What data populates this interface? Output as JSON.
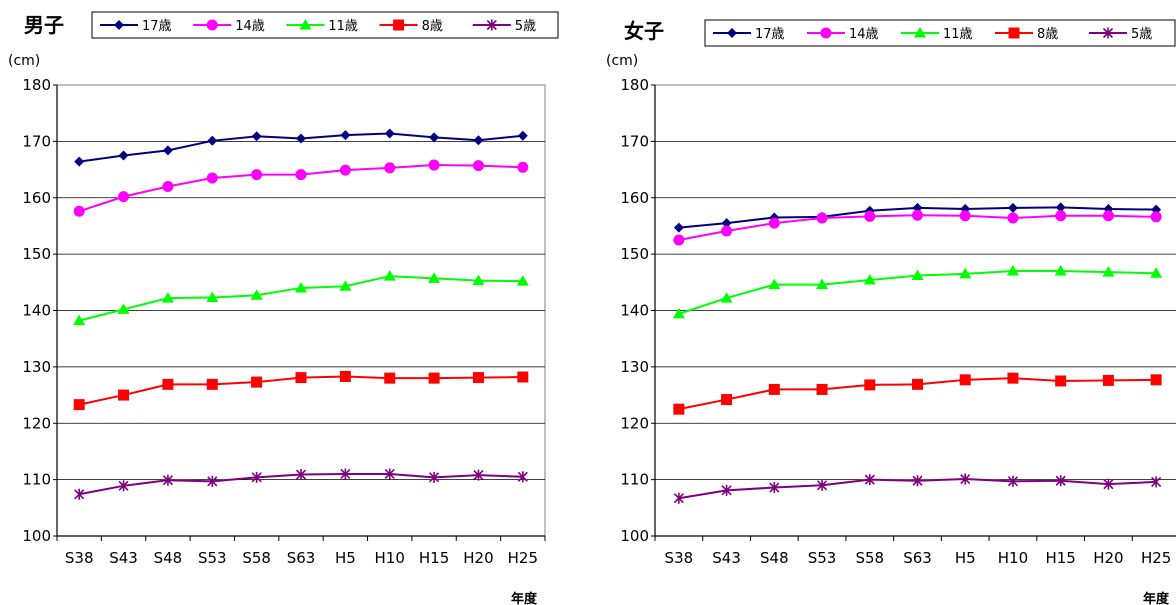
{
  "chart_data": [
    {
      "type": "line",
      "title": "男子",
      "ylabel": "(cm)",
      "xlabel": "年度",
      "ylim": [
        100,
        180
      ],
      "yticks": [
        100,
        110,
        120,
        130,
        140,
        150,
        160,
        170,
        180
      ],
      "grid": true,
      "legend": "top",
      "categories": [
        "S38",
        "S43",
        "S48",
        "S53",
        "S58",
        "S63",
        "H5",
        "H10",
        "H15",
        "H20",
        "H25"
      ],
      "series": [
        {
          "name": "17歳",
          "color": "#000080",
          "marker": "diamond",
          "values": [
            166.4,
            167.5,
            168.4,
            170.1,
            170.9,
            170.5,
            171.1,
            171.4,
            170.7,
            170.2,
            171.0
          ]
        },
        {
          "name": "14歳",
          "color": "#ff00ff",
          "marker": "circle",
          "values": [
            157.6,
            160.2,
            162.0,
            163.5,
            164.1,
            164.1,
            164.9,
            165.3,
            165.8,
            165.7,
            165.4
          ]
        },
        {
          "name": "11歳",
          "color": "#00ff00",
          "marker": "triangle",
          "values": [
            138.2,
            140.2,
            142.2,
            142.3,
            142.7,
            144.0,
            144.3,
            146.1,
            145.7,
            145.3,
            145.2
          ]
        },
        {
          "name": "8歳",
          "color": "#ff0000",
          "marker": "square",
          "values": [
            123.3,
            125.0,
            126.9,
            126.9,
            127.3,
            128.1,
            128.3,
            128.0,
            128.0,
            128.1,
            128.2
          ]
        },
        {
          "name": "5歳",
          "color": "#800080",
          "marker": "star",
          "values": [
            107.4,
            108.9,
            109.9,
            109.7,
            110.4,
            110.9,
            111.0,
            111.0,
            110.4,
            110.8,
            110.5
          ]
        }
      ]
    },
    {
      "type": "line",
      "title": "女子",
      "ylabel": "(cm)",
      "xlabel": "年度",
      "ylim": [
        100,
        180
      ],
      "yticks": [
        100,
        110,
        120,
        130,
        140,
        150,
        160,
        170,
        180
      ],
      "grid": true,
      "legend": "top",
      "categories": [
        "S38",
        "S43",
        "S48",
        "S53",
        "S58",
        "S63",
        "H5",
        "H10",
        "H15",
        "H20",
        "H25"
      ],
      "series": [
        {
          "name": "17歳",
          "color": "#000080",
          "marker": "diamond",
          "values": [
            154.7,
            155.5,
            156.5,
            156.6,
            157.7,
            158.2,
            158.0,
            158.2,
            158.3,
            158.0,
            157.9
          ]
        },
        {
          "name": "14歳",
          "color": "#ff00ff",
          "marker": "circle",
          "values": [
            152.5,
            154.1,
            155.5,
            156.4,
            156.7,
            156.9,
            156.8,
            156.4,
            156.8,
            156.8,
            156.6
          ]
        },
        {
          "name": "11歳",
          "color": "#00ff00",
          "marker": "triangle",
          "values": [
            139.4,
            142.2,
            144.6,
            144.6,
            145.4,
            146.2,
            146.5,
            147.0,
            147.0,
            146.8,
            146.6
          ]
        },
        {
          "name": "8歳",
          "color": "#ff0000",
          "marker": "square",
          "values": [
            122.5,
            124.2,
            126.0,
            126.0,
            126.8,
            126.9,
            127.7,
            128.0,
            127.5,
            127.6,
            127.7
          ]
        },
        {
          "name": "5歳",
          "color": "#800080",
          "marker": "star",
          "values": [
            106.7,
            108.1,
            108.6,
            109.0,
            110.0,
            109.8,
            110.1,
            109.7,
            109.8,
            109.2,
            109.6
          ]
        }
      ]
    }
  ]
}
